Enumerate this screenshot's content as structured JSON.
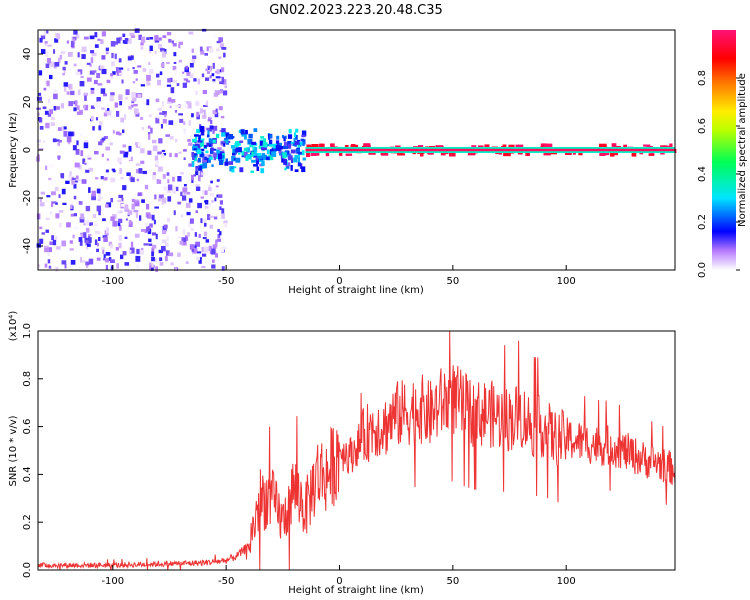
{
  "title": "GN02.2023.223.20.48.C35",
  "chart_data": [
    {
      "type": "heatmap",
      "xlabel": "Height of straight line (km)",
      "ylabel": "Frequency (Hz)",
      "xlim": [
        -133,
        148
      ],
      "ylim": [
        -50,
        50
      ],
      "xticks": [
        -100,
        -50,
        0,
        50,
        100
      ],
      "yticks": [
        -40,
        -20,
        0,
        20,
        40
      ],
      "colorbar": {
        "label": "Normalized spectral amplitude",
        "range": [
          0.0,
          1.0
        ],
        "ticks": [
          0.0,
          0.2,
          0.4,
          0.6,
          0.8
        ],
        "tick_labels": [
          "0.0",
          "0.2",
          "0.4",
          "0.6",
          "0.8"
        ]
      },
      "regions": [
        {
          "x_range": [
            -133,
            -50
          ],
          "freq_range": [
            -50,
            50
          ],
          "amplitude": [
            0.0,
            0.15
          ],
          "pattern": "scattered noise"
        },
        {
          "x_range": [
            -65,
            -15
          ],
          "freq_range": [
            -10,
            10
          ],
          "amplitude": [
            0.1,
            0.35
          ],
          "pattern": "transition cluster"
        },
        {
          "x_range": [
            -15,
            148
          ],
          "freq_range": [
            -2,
            2
          ],
          "amplitude": [
            0.9,
            1.0
          ],
          "pattern": "strong band at 0 Hz"
        }
      ]
    },
    {
      "type": "line",
      "xlabel": "Height of straight line (km)",
      "ylabel": "SNR (10 * v/v)",
      "y_multiplier": "(x10⁴)",
      "xlim": [
        -133,
        148
      ],
      "ylim": [
        0.0,
        1.0
      ],
      "xticks": [
        -100,
        -50,
        0,
        50,
        100
      ],
      "yticks": [
        0.0,
        0.2,
        0.4,
        0.6,
        0.8,
        1.0
      ],
      "ytick_labels": [
        "0.0",
        "0.2",
        "0.4",
        "0.6",
        "0.8",
        "1.0"
      ],
      "color": "#ee3333",
      "series": [
        {
          "x": [
            -133,
            -120,
            -100,
            -80,
            -60,
            -50,
            -45,
            -40,
            -35,
            -30,
            -25,
            -20,
            -15,
            -10,
            -5,
            0,
            5,
            10,
            15,
            20,
            25,
            30,
            35,
            40,
            45,
            50,
            55,
            60,
            65,
            70,
            75,
            80,
            85,
            90,
            95,
            100,
            105,
            110,
            115,
            120,
            125,
            130,
            135,
            140,
            148
          ],
          "values": [
            0.02,
            0.02,
            0.02,
            0.025,
            0.03,
            0.04,
            0.06,
            0.1,
            0.3,
            0.3,
            0.2,
            0.35,
            0.25,
            0.4,
            0.4,
            0.5,
            0.48,
            0.55,
            0.6,
            0.6,
            0.65,
            0.66,
            0.68,
            0.65,
            0.7,
            0.72,
            0.68,
            0.65,
            0.66,
            0.64,
            0.63,
            0.65,
            0.6,
            0.6,
            0.55,
            0.55,
            0.54,
            0.53,
            0.52,
            0.52,
            0.5,
            0.48,
            0.46,
            0.45,
            0.42
          ]
        }
      ]
    }
  ]
}
